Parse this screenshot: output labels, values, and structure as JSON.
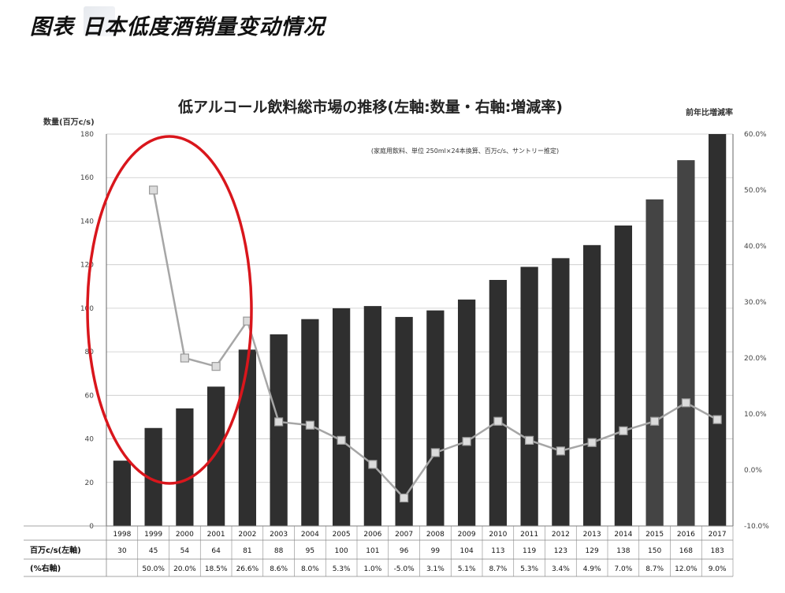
{
  "page_title": "图表  日本低度酒销量变动情况",
  "chart_data": {
    "type": "bar+line",
    "title": "低アルコール飲料総市場の推移(左軸:数量・右軸:増減率)",
    "note": "(家庭用飲料、単位 250ml×24本換算、百万c/s、サントリー推定)",
    "ylabel_left": "数量(百万c/s)",
    "ylabel_right": "前年比増減率",
    "ylim_left": [
      0,
      180
    ],
    "ylim_right": [
      -10,
      60
    ],
    "yticks_left": [
      "0",
      "20",
      "40",
      "60",
      "80",
      "100",
      "120",
      "140",
      "160",
      "180"
    ],
    "yticks_right": [
      "-10.0%",
      "0.0%",
      "10.0%",
      "20.0%",
      "30.0%",
      "40.0%",
      "50.0%",
      "60.0%"
    ],
    "categories": [
      "1998",
      "1999",
      "2000",
      "2001",
      "2002",
      "2003",
      "2004",
      "2005",
      "2006",
      "2007",
      "2008",
      "2009",
      "2010",
      "2011",
      "2012",
      "2013",
      "2014",
      "2015",
      "2016",
      "2017"
    ],
    "series": [
      {
        "name": "百万c/s(左軸)",
        "type": "bar",
        "values": [
          30,
          45,
          54,
          64,
          81,
          88,
          95,
          100,
          101,
          96,
          99,
          104,
          113,
          119,
          123,
          129,
          138,
          150,
          168,
          183
        ],
        "labels": [
          "30",
          "45",
          "54",
          "64",
          "81",
          "88",
          "95",
          "100",
          "101",
          "96",
          "99",
          "104",
          "113",
          "119",
          "123",
          "129",
          "138",
          "150",
          "168",
          "183"
        ]
      },
      {
        "name": "(%右軸)",
        "type": "line",
        "values": [
          null,
          50.0,
          20.0,
          18.5,
          26.6,
          8.6,
          8.0,
          5.3,
          1.0,
          -5.0,
          3.1,
          5.1,
          8.7,
          5.3,
          3.4,
          4.9,
          7.0,
          8.7,
          12.0,
          9.0
        ],
        "labels": [
          "",
          "50.0%",
          "20.0%",
          "18.5%",
          "26.6%",
          "8.6%",
          "8.0%",
          "5.3%",
          "1.0%",
          "-5.0%",
          "3.1%",
          "5.1%",
          "8.7%",
          "5.3%",
          "3.4%",
          "4.9%",
          "7.0%",
          "8.7%",
          "12.0%",
          "9.0%"
        ]
      }
    ],
    "bar_colors": [
      "#2f2f2f",
      "#2f2f2f",
      "#2f2f2f",
      "#2f2f2f",
      "#2f2f2f",
      "#2f2f2f",
      "#2f2f2f",
      "#2f2f2f",
      "#2f2f2f",
      "#2f2f2f",
      "#2f2f2f",
      "#2f2f2f",
      "#2f2f2f",
      "#2f2f2f",
      "#2f2f2f",
      "#2f2f2f",
      "#2f2f2f",
      "#444444",
      "#444444",
      "#2f2f2f"
    ],
    "line_color": "#a6a6a6",
    "highlight_color": "#d9161c",
    "grid": true,
    "legend": "none"
  }
}
